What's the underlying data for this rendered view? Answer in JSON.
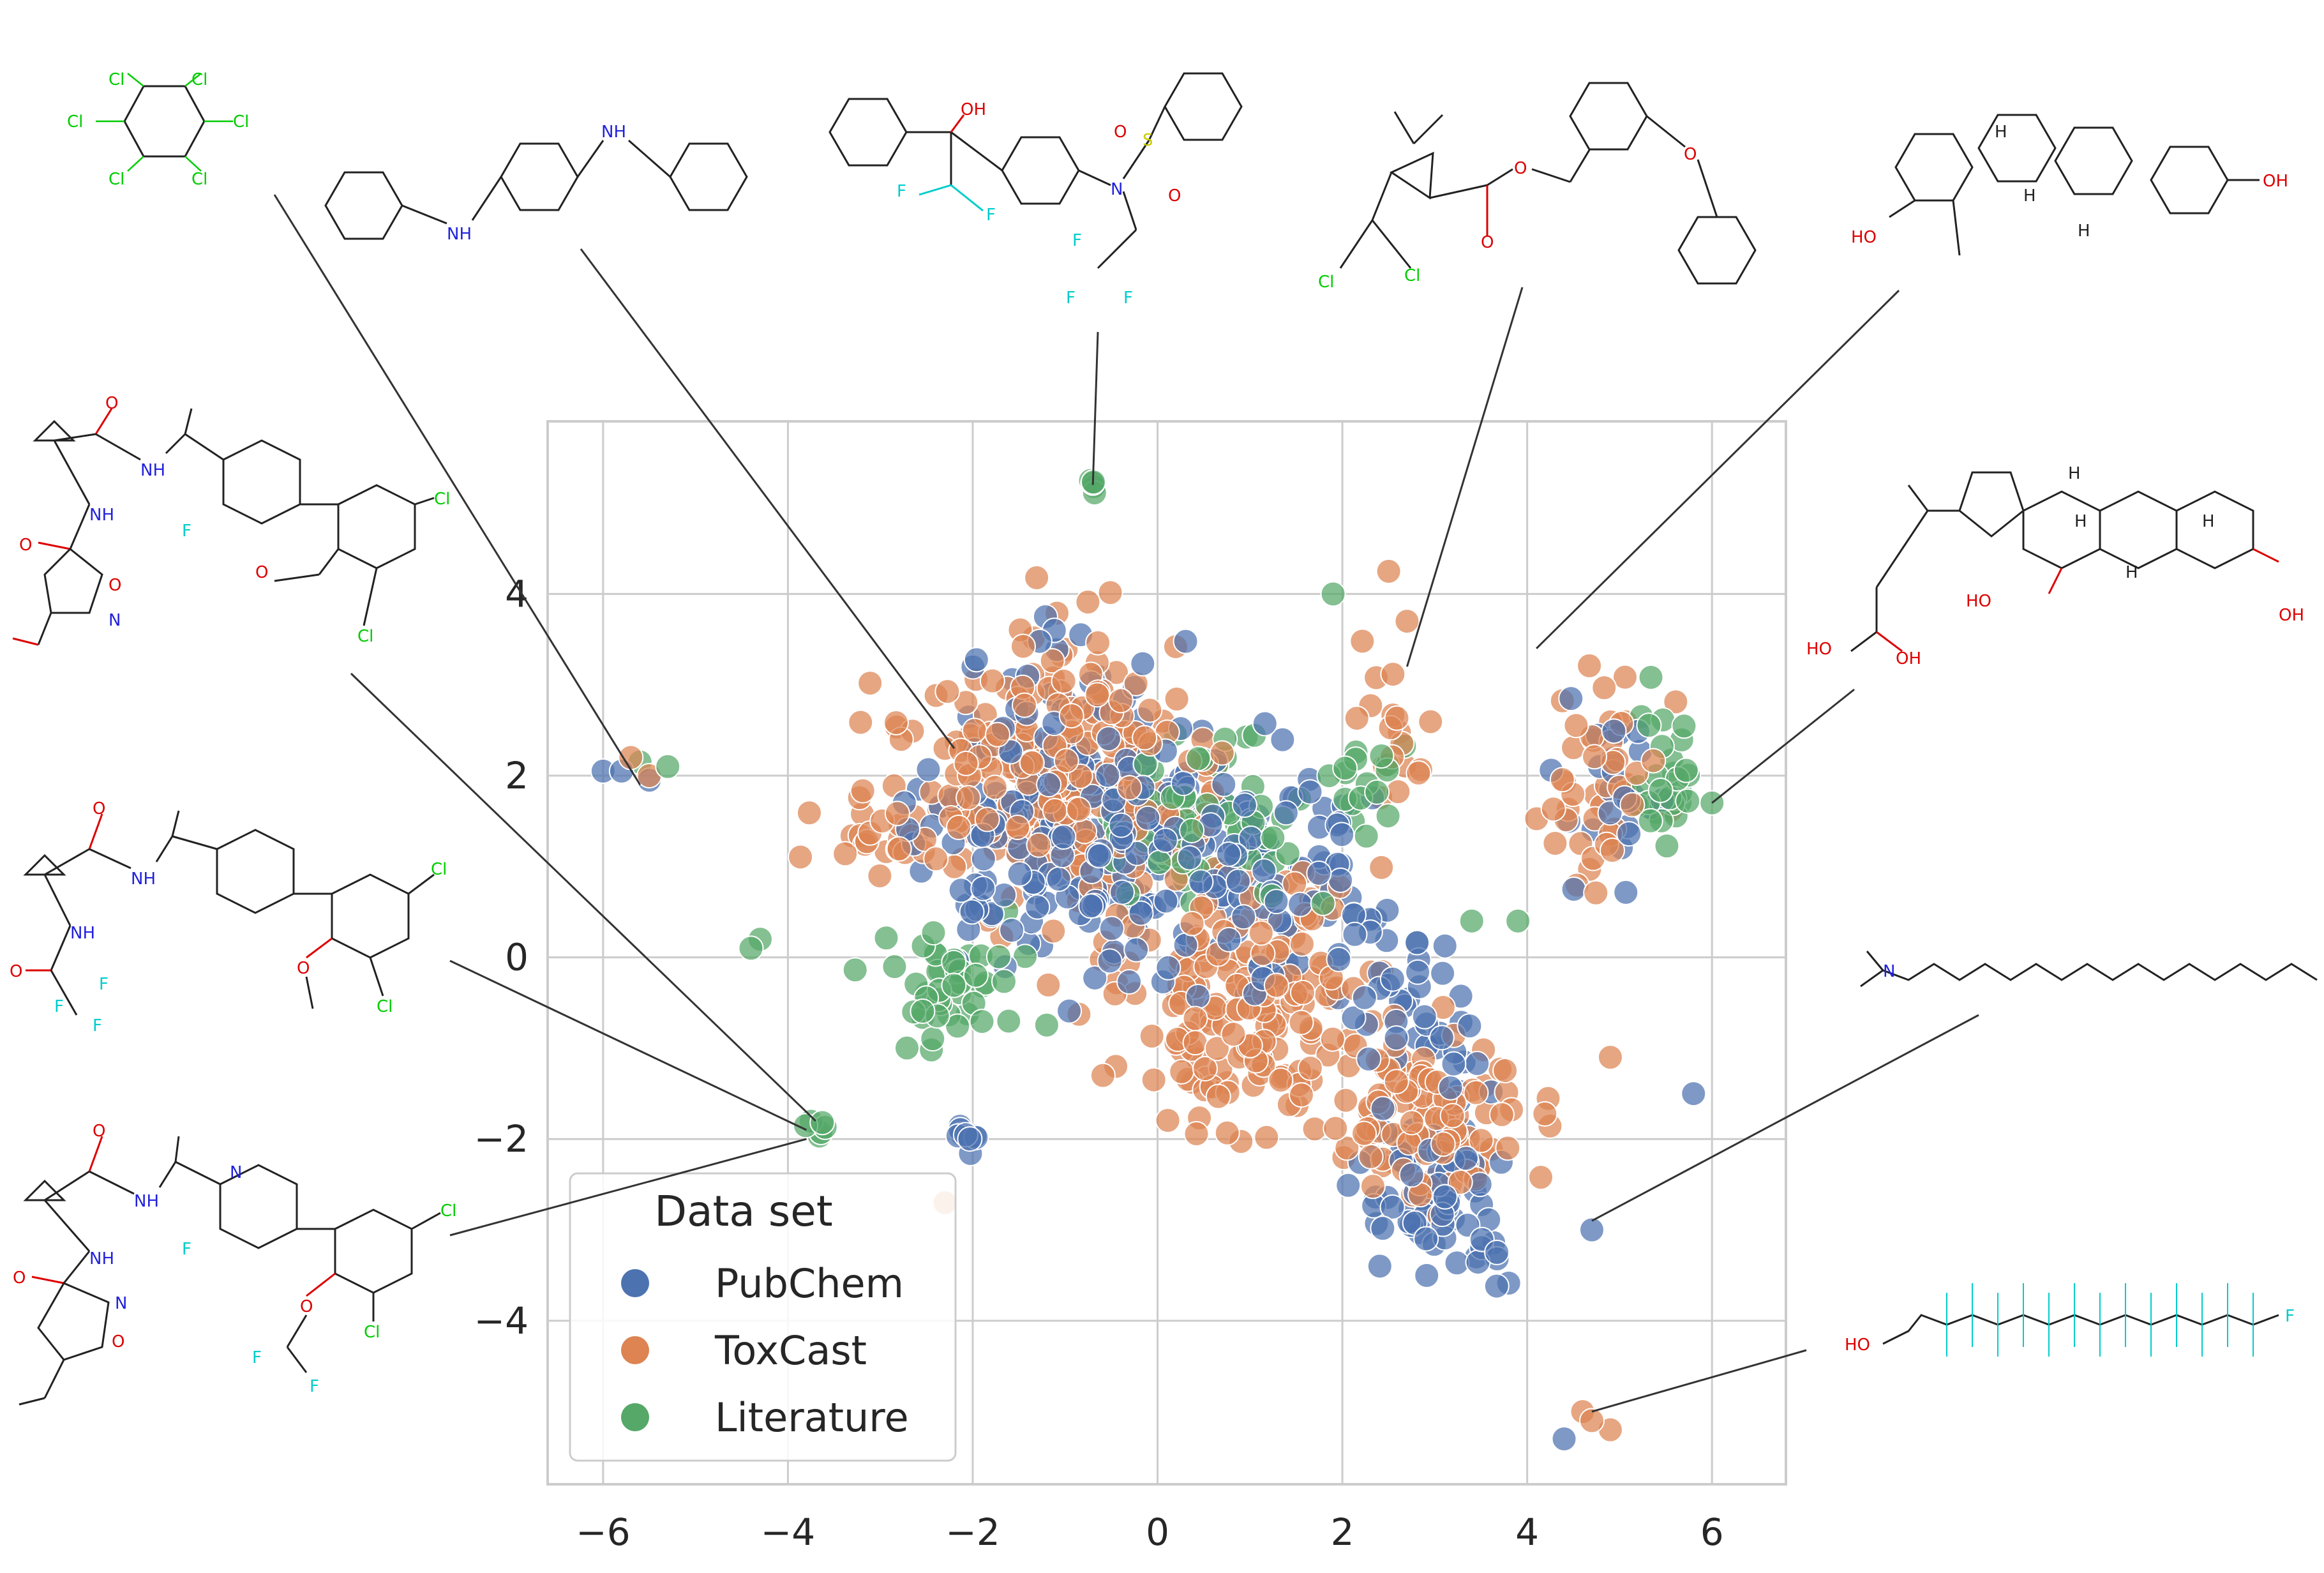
{
  "chart_data": {
    "type": "scatter",
    "title": "",
    "xlabel": "",
    "ylabel": "",
    "xlim": [
      -6.6,
      6.8
    ],
    "ylim": [
      -5.8,
      5.9
    ],
    "xticks": [
      -6,
      -4,
      -2,
      0,
      2,
      4,
      6
    ],
    "yticks": [
      -4,
      -2,
      0,
      2,
      4
    ],
    "xtick_labels": [
      "−6",
      "−4",
      "−2",
      "0",
      "2",
      "4",
      "6"
    ],
    "ytick_labels": [
      "−4",
      "−2",
      "0",
      "2",
      "4"
    ],
    "grid": true,
    "legend": {
      "title": "Data set",
      "position": "lower-left"
    },
    "series": [
      {
        "name": "PubChem",
        "color": "#4C72B0",
        "clusters": [
          {
            "x": -1.0,
            "y": 1.5,
            "sx": 1.5,
            "sy": 1.5,
            "n": 220
          },
          {
            "x": 1.0,
            "y": 1.0,
            "sx": 1.3,
            "sy": 1.2,
            "n": 120
          },
          {
            "x": 3.0,
            "y": -2.6,
            "sx": 0.8,
            "sy": 0.8,
            "n": 70
          },
          {
            "x": 2.8,
            "y": -0.6,
            "sx": 0.9,
            "sy": 0.8,
            "n": 40
          },
          {
            "x": 5.0,
            "y": 2.0,
            "sx": 0.6,
            "sy": 1.1,
            "n": 25
          },
          {
            "x": -2.1,
            "y": -2.0,
            "sx": 0.15,
            "sy": 0.12,
            "n": 10
          }
        ],
        "points": [
          [
            -6.0,
            2.05
          ],
          [
            -5.8,
            2.05
          ],
          [
            -5.5,
            1.95
          ],
          [
            4.4,
            -5.3
          ],
          [
            5.8,
            -1.5
          ],
          [
            4.7,
            -3.0
          ]
        ]
      },
      {
        "name": "ToxCast",
        "color": "#DD8452",
        "clusters": [
          {
            "x": -1.0,
            "y": 2.0,
            "sx": 1.5,
            "sy": 1.4,
            "n": 260
          },
          {
            "x": 1.0,
            "y": -0.5,
            "sx": 1.3,
            "sy": 1.4,
            "n": 180
          },
          {
            "x": 3.0,
            "y": -1.8,
            "sx": 1.0,
            "sy": 0.9,
            "n": 110
          },
          {
            "x": 4.8,
            "y": 1.8,
            "sx": 0.6,
            "sy": 1.2,
            "n": 45
          },
          {
            "x": 2.5,
            "y": 2.5,
            "sx": 0.4,
            "sy": 1.0,
            "n": 20
          },
          {
            "x": -3.0,
            "y": 1.3,
            "sx": 0.6,
            "sy": 0.3,
            "n": 20
          }
        ],
        "points": [
          [
            -5.7,
            2.2
          ],
          [
            -5.5,
            2.0
          ],
          [
            -2.3,
            2.3
          ],
          [
            2.7,
            3.7
          ],
          [
            4.6,
            -5.0
          ],
          [
            4.7,
            -5.1
          ],
          [
            4.9,
            -5.2
          ],
          [
            4.9,
            -1.1
          ],
          [
            -2.3,
            -2.7
          ]
        ]
      },
      {
        "name": "Literature",
        "color": "#55A868",
        "clusters": [
          {
            "x": 0.5,
            "y": 1.5,
            "sx": 1.1,
            "sy": 0.8,
            "n": 80
          },
          {
            "x": -2.2,
            "y": -0.3,
            "sx": 0.8,
            "sy": 0.7,
            "n": 45
          },
          {
            "x": 5.5,
            "y": 2.0,
            "sx": 0.35,
            "sy": 0.7,
            "n": 30
          },
          {
            "x": 2.4,
            "y": 1.8,
            "sx": 0.4,
            "sy": 0.5,
            "n": 15
          },
          {
            "x": -0.7,
            "y": 5.2,
            "sx": 0.05,
            "sy": 0.08,
            "n": 5
          },
          {
            "x": -3.7,
            "y": -1.9,
            "sx": 0.1,
            "sy": 0.12,
            "n": 6
          }
        ],
        "points": [
          [
            -5.3,
            2.1
          ],
          [
            -5.6,
            2.15
          ],
          [
            -4.4,
            0.1
          ],
          [
            -4.3,
            0.2
          ],
          [
            3.4,
            0.4
          ],
          [
            3.9,
            0.4
          ],
          [
            6.0,
            1.7
          ],
          [
            1.9,
            4.0
          ]
        ]
      }
    ],
    "annotations": [
      {
        "name": "hexachlorocyclohexane",
        "x": -5.6,
        "y": 1.9
      },
      {
        "name": "diphenyl-p-phenylenediamine",
        "x": -2.2,
        "y": 2.3
      },
      {
        "name": "sulfonamide-trifluoroethyl",
        "x": -0.7,
        "y": 5.2
      },
      {
        "name": "permethrin",
        "x": 2.7,
        "y": 3.2
      },
      {
        "name": "estradiol",
        "x": 4.1,
        "y": 3.4
      },
      {
        "name": "deoxycholic-acid",
        "x": 6.0,
        "y": 1.7
      },
      {
        "name": "isoxazole-amide-1",
        "x": -3.7,
        "y": -1.8
      },
      {
        "name": "trifluoroacetamide",
        "x": -3.8,
        "y": -1.9
      },
      {
        "name": "isoxazole-amide-2",
        "x": -3.8,
        "y": -2.0
      },
      {
        "name": "dimethyltetradecylamine",
        "x": 4.7,
        "y": -2.9
      },
      {
        "name": "fluorotelomer-alcohol",
        "x": 4.7,
        "y": -5.0
      }
    ]
  },
  "structures": {
    "hexachloro": {
      "Cl": "Cl"
    },
    "diphenylamine": {
      "NH": "NH"
    },
    "sulfonamide": {
      "OH": "OH",
      "F": "F",
      "N": "N",
      "S": "S",
      "O": "O"
    },
    "permethrin": {
      "O": "O",
      "Cl": "Cl"
    },
    "estradiol": {
      "HO": "HO",
      "OH": "OH",
      "H": "H"
    },
    "bile_acid": {
      "HO": "HO",
      "OH": "OH",
      "H": "H"
    },
    "amine": {
      "N": "N"
    },
    "telomer": {
      "HO": "HO",
      "F": "F"
    },
    "cpd1": {
      "O": "O",
      "NH": "NH",
      "F": "F",
      "Cl": "Cl",
      "N": "N"
    },
    "cpd2": {
      "O": "O",
      "NH": "NH",
      "F": "F",
      "Cl": "Cl"
    },
    "cpd3": {
      "O": "O",
      "NH": "NH",
      "F": "F",
      "Cl": "Cl",
      "N": "N"
    }
  }
}
